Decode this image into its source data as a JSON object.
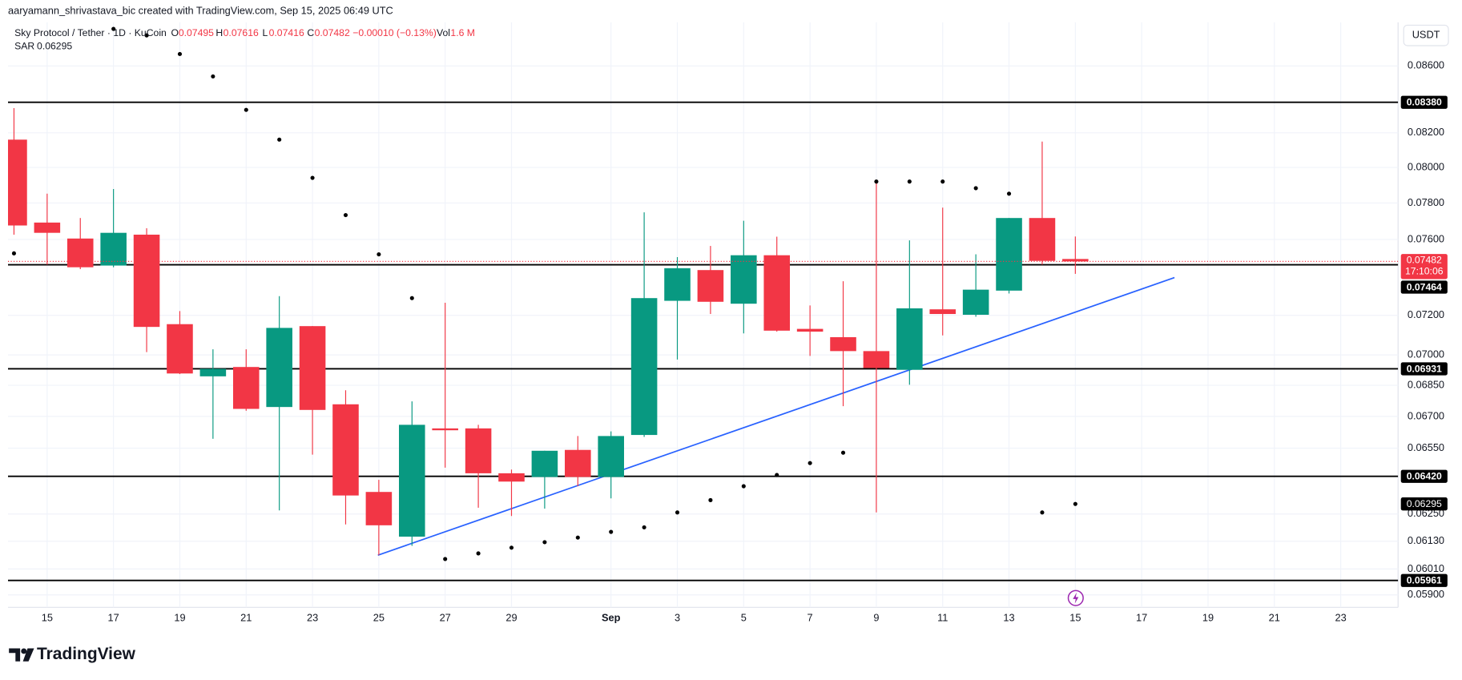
{
  "header": {
    "attribution": "aaryamann_shrivastava_bic created with TradingView.com, Sep 15, 2025 06:49 UTC",
    "symbol": "Sky Protocol / Tether · 1D · KuCoin",
    "o_label": "O",
    "h_label": "H",
    "l_label": "L",
    "c_label": "C",
    "change": "−0.00010 (−0.13%)",
    "vol_label": "Vol",
    "volume": "1.6 M",
    "currency": "USDT",
    "logo": "TradingView"
  },
  "chart_data": {
    "type": "candlestick",
    "categories": [
      null,
      "15",
      null,
      "17",
      null,
      "19",
      null,
      "21",
      null,
      "23",
      null,
      "25",
      null,
      "27",
      null,
      "29",
      null,
      null,
      "Sep",
      null,
      "3",
      null,
      "5",
      null,
      "7",
      null,
      "9",
      null,
      "11",
      null,
      "13",
      null,
      "15",
      null,
      "17",
      null,
      "19",
      null,
      "21",
      null,
      "23"
    ],
    "open": [
      0.0816,
      0.07692,
      0.07605,
      0.0746,
      0.07626,
      0.07155,
      0.06894,
      0.0694,
      0.06745,
      0.07145,
      0.06758,
      0.06349,
      0.0615,
      0.06643,
      0.06643,
      0.06434,
      0.06417,
      0.06542,
      0.06417,
      0.06612,
      0.07275,
      0.07436,
      0.0726,
      0.07515,
      0.07131,
      0.07089,
      0.07019,
      0.06926,
      0.07231,
      0.07203,
      0.07328,
      0.07717,
      0.07495,
      null,
      null,
      null,
      null,
      null,
      null,
      null,
      null
    ],
    "high": [
      0.08345,
      0.07852,
      0.07717,
      0.07878,
      0.07661,
      0.07222,
      0.07028,
      0.07028,
      0.07299,
      0.07145,
      0.06826,
      0.06404,
      0.06772,
      0.07265,
      0.0666,
      0.06451,
      0.06538,
      0.06607,
      0.06629,
      0.07748,
      0.07505,
      0.07565,
      0.07702,
      0.07615,
      0.07251,
      0.07377,
      0.0792,
      0.07595,
      0.07774,
      0.0752,
      0.07717,
      0.08149,
      0.07616,
      null,
      null,
      null,
      null,
      null,
      null,
      null,
      null
    ],
    "low": [
      0.07626,
      0.07465,
      0.07441,
      0.07451,
      0.07014,
      0.06905,
      0.06594,
      0.06727,
      0.06266,
      0.0652,
      0.06204,
      0.06069,
      0.0611,
      0.0646,
      0.06278,
      0.06241,
      0.06274,
      0.06375,
      0.0632,
      0.06603,
      0.06977,
      0.07207,
      0.07108,
      0.07117,
      0.06995,
      0.06749,
      0.06257,
      0.06853,
      0.07098,
      0.07193,
      0.07313,
      0.07465,
      0.07416,
      null,
      null,
      null,
      null,
      null,
      null,
      null,
      null
    ],
    "close": [
      0.07676,
      0.07636,
      0.07451,
      0.07636,
      0.07141,
      0.06908,
      0.06931,
      0.06736,
      0.07136,
      0.06731,
      0.06333,
      0.062,
      0.0666,
      0.06638,
      0.06434,
      0.06396,
      0.06538,
      0.06417,
      0.06607,
      0.07289,
      0.07446,
      0.0727,
      0.07515,
      0.07122,
      0.07117,
      0.07019,
      0.06935,
      0.07236,
      0.07207,
      0.07333,
      0.07717,
      0.07485,
      0.07482,
      null,
      null,
      null,
      null,
      null,
      null,
      null,
      null
    ],
    "up_color": "#089981",
    "down_color": "#f23645",
    "sar": {
      "name": "SAR",
      "color": "#000000",
      "values": [
        0.07525,
        null,
        null,
        0.0883,
        0.08789,
        0.08673,
        0.08536,
        0.08335,
        0.0816,
        0.07941,
        0.07733,
        0.0752,
        0.07289,
        0.06053,
        0.06077,
        0.06102,
        0.06126,
        0.06146,
        0.06171,
        0.06191,
        0.06257,
        0.06312,
        0.06375,
        0.06426,
        0.06481,
        0.06529,
        0.0792,
        0.0792,
        0.0792,
        0.07883,
        0.07852,
        0.06257,
        0.06295,
        null,
        null,
        null,
        null,
        null,
        null,
        null,
        null
      ]
    },
    "ylim": [
      0.05848,
      0.08871
    ],
    "log_scale": true,
    "grid": true,
    "yticks": [
      {
        "value": 0.059,
        "label": "0.05900"
      },
      {
        "value": 0.0601,
        "label": "0.06010"
      },
      {
        "value": 0.0613,
        "label": "0.06130"
      },
      {
        "value": 0.0625,
        "label": "0.06250"
      },
      {
        "value": 0.0655,
        "label": "0.06550"
      },
      {
        "value": 0.067,
        "label": "0.06700"
      },
      {
        "value": 0.0685,
        "label": "0.06850"
      },
      {
        "value": 0.07,
        "label": "0.07000"
      },
      {
        "value": 0.072,
        "label": "0.07200"
      },
      {
        "value": 0.076,
        "label": "0.07600"
      },
      {
        "value": 0.078,
        "label": "0.07800"
      },
      {
        "value": 0.08,
        "label": "0.08000"
      },
      {
        "value": 0.082,
        "label": "0.08200"
      },
      {
        "value": 0.086,
        "label": "0.08600"
      }
    ],
    "levels": [
      {
        "value": 0.0838,
        "label": "0.08380"
      },
      {
        "value": 0.07464,
        "label": "0.07464"
      },
      {
        "value": 0.06931,
        "label": "0.06931"
      },
      {
        "value": 0.0642,
        "label": "0.06420"
      },
      {
        "value": 0.05961,
        "label": "0.05961"
      }
    ],
    "countdown": "17:10:06"
  }
}
